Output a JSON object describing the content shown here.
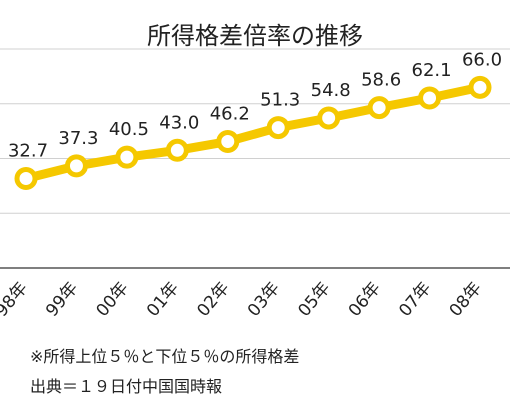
{
  "chart_data": {
    "type": "line",
    "title": "所得格差倍率の推移",
    "categories": [
      "98年",
      "99年",
      "00年",
      "01年",
      "02年",
      "03年",
      "05年",
      "06年",
      "07年",
      "08年"
    ],
    "series": [
      {
        "name": "",
        "values": [
          32.7,
          37.3,
          40.5,
          43.0,
          46.2,
          51.3,
          54.8,
          58.6,
          62.1,
          66.0
        ]
      }
    ],
    "data_labels": [
      "32.7",
      "37.3",
      "40.5",
      "43.0",
      "46.2",
      "51.3",
      "54.8",
      "58.6",
      "62.1",
      "66.0"
    ],
    "ylim": [
      0,
      80
    ],
    "grid": true,
    "colors": {
      "line": "#f5c800",
      "marker_fill": "#ffffff",
      "grid": "#d0d0d0",
      "axis": "#333333"
    }
  },
  "notes": [
    "※所得上位５％と下位５％の所得格差",
    "出典＝１９日付中国国時報"
  ]
}
